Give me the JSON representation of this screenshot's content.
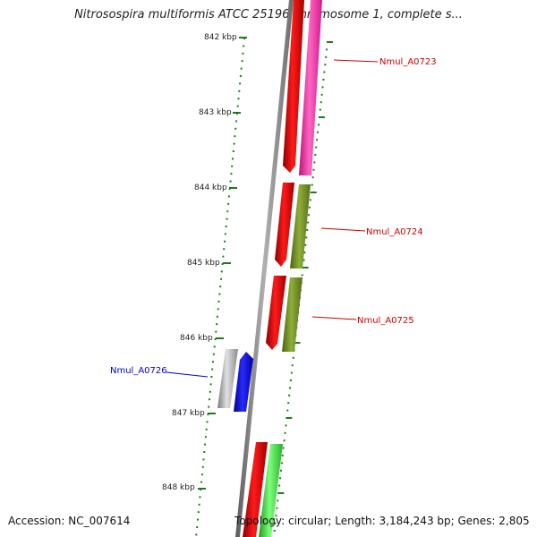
{
  "title": "Nitrosospira multiformis ATCC 25196 chromosome 1, complete s...",
  "footer": {
    "accession": "Accession: NC_007614",
    "topology": "Topology: circular; Length: 3,184,243 bp; Genes: 2,805"
  },
  "ruler_labels": [
    "842 kbp",
    "843 kbp",
    "844 kbp",
    "845 kbp",
    "846 kbp",
    "847 kbp",
    "848 kbp"
  ],
  "genes": [
    {
      "id": "Nmul_A0723",
      "color": "#cc0000"
    },
    {
      "id": "Nmul_A0724",
      "color": "#cc0000"
    },
    {
      "id": "Nmul_A0725",
      "color": "#cc0000"
    },
    {
      "id": "Nmul_A0726",
      "color": "#0000cc"
    }
  ],
  "colors": {
    "backbone": "#8a8a8a",
    "ticks": "#1e7a1e",
    "red_feature": "#e00000",
    "pink_feature": "#ff33aa",
    "olive_feature": "#6b8a1e",
    "gray_feature": "#a8a8a8",
    "blue_feature": "#0000ee",
    "green_feature": "#33dd33"
  }
}
